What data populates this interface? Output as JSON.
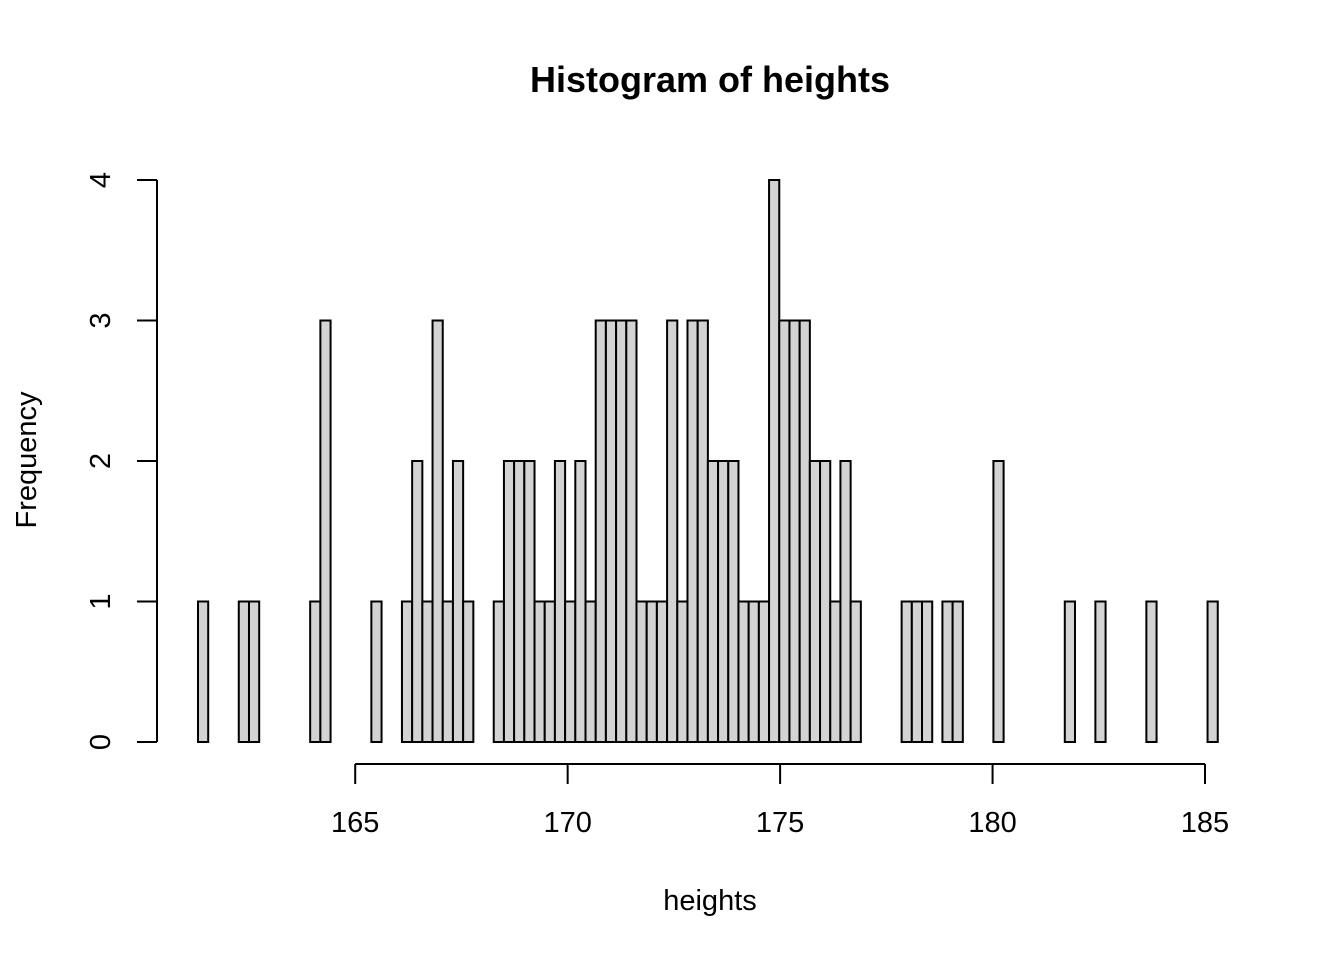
{
  "chart_data": {
    "type": "bar",
    "title": "Histogram of heights",
    "xlabel": "heights",
    "ylabel": "Frequency",
    "x_ticks": [
      165,
      170,
      175,
      180,
      185
    ],
    "y_ticks": [
      0,
      1,
      2,
      3,
      4
    ],
    "xlim": [
      161.3,
      185.4
    ],
    "ylim": [
      0,
      4
    ],
    "bin_start": 161.3,
    "bin_width": 0.24,
    "values": [
      1,
      0,
      0,
      0,
      1,
      1,
      0,
      0,
      0,
      0,
      0,
      1,
      3,
      0,
      0,
      0,
      0,
      1,
      0,
      0,
      1,
      2,
      1,
      3,
      1,
      2,
      1,
      0,
      0,
      1,
      2,
      2,
      2,
      1,
      1,
      2,
      1,
      2,
      1,
      3,
      3,
      3,
      3,
      1,
      1,
      1,
      3,
      1,
      3,
      3,
      2,
      2,
      2,
      1,
      1,
      1,
      4,
      3,
      3,
      3,
      2,
      2,
      1,
      2,
      1,
      0,
      0,
      0,
      0,
      1,
      1,
      1,
      0,
      1,
      1,
      0,
      0,
      0,
      2,
      0,
      0,
      0,
      0,
      0,
      0,
      1,
      0,
      0,
      1,
      0,
      0,
      0,
      0,
      1,
      0,
      0,
      0,
      0,
      0,
      1
    ]
  }
}
